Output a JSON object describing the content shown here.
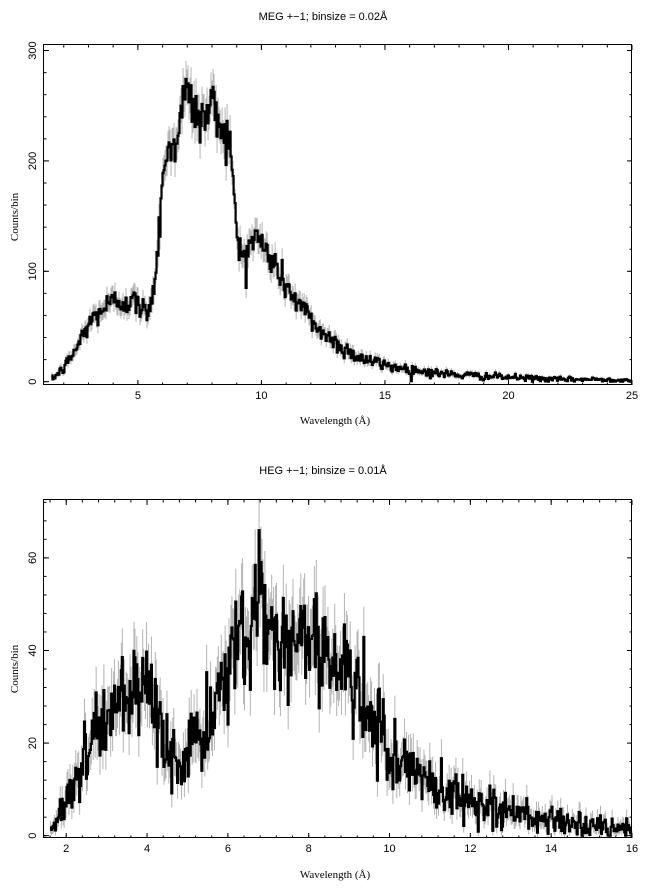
{
  "chart_data": [
    {
      "type": "line",
      "title": "MEG +−1; binsize = 0.02Å",
      "xlabel": "Wavelength (Å)",
      "ylabel": "Counts/bin",
      "xlim": [
        1.2,
        25
      ],
      "ylim": [
        -3,
        305
      ],
      "xticks": [
        5,
        10,
        15,
        20,
        25
      ],
      "yticks": [
        0,
        100,
        200,
        300
      ],
      "grid": false,
      "legend": "none",
      "series": [
        {
          "style": "histogram-step with error bars",
          "x": [
            1.5,
            2.0,
            2.5,
            3.0,
            3.5,
            4.0,
            4.5,
            5.0,
            5.3,
            5.5,
            5.7,
            5.9,
            6.0,
            6.2,
            6.5,
            6.8,
            7.0,
            7.3,
            7.6,
            7.9,
            8.1,
            8.4,
            8.7,
            8.9,
            9.1,
            9.4,
            9.7,
            10.0,
            10.4,
            10.8,
            11.2,
            11.6,
            12.0,
            12.5,
            13.0,
            13.5,
            14.0,
            14.5,
            15.0,
            16.0,
            17.0,
            18.0,
            19.0,
            20.0,
            21.0,
            22.0,
            23.0,
            24.0,
            25.0
          ],
          "y": [
            2,
            12,
            30,
            52,
            65,
            72,
            74,
            70,
            62,
            72,
            92,
            150,
            195,
            205,
            218,
            250,
            262,
            245,
            235,
            250,
            248,
            232,
            220,
            165,
            115,
            118,
            132,
            125,
            110,
            95,
            80,
            68,
            56,
            44,
            35,
            28,
            22,
            18,
            15,
            11,
            8,
            6,
            5,
            4,
            3,
            2,
            2,
            2,
            1
          ]
        }
      ]
    },
    {
      "type": "line",
      "title": "HEG +−1; binsize = 0.01Å",
      "xlabel": "Wavelength (Å)",
      "ylabel": "Counts/bin",
      "xlim": [
        1.45,
        16
      ],
      "ylim": [
        -0.5,
        72.5
      ],
      "xticks": [
        2,
        4,
        6,
        8,
        10,
        12,
        14,
        16
      ],
      "yticks": [
        0,
        20,
        40,
        60
      ],
      "grid": false,
      "legend": "none",
      "series": [
        {
          "style": "histogram-step with error bars",
          "x": [
            1.6,
            1.8,
            2.0,
            2.2,
            2.4,
            2.6,
            2.8,
            3.0,
            3.3,
            3.6,
            3.9,
            4.1,
            4.3,
            4.5,
            4.7,
            4.9,
            5.1,
            5.3,
            5.5,
            5.7,
            5.9,
            6.1,
            6.3,
            6.5,
            6.7,
            6.85,
            7.0,
            7.3,
            7.6,
            7.9,
            8.2,
            8.5,
            8.8,
            9.1,
            9.4,
            9.7,
            10.0,
            10.4,
            10.8,
            11.2,
            11.6,
            12.0,
            12.5,
            13.0,
            13.5,
            14.0,
            14.5,
            15.0,
            15.5,
            16.0
          ],
          "y": [
            1,
            4,
            8,
            12,
            16,
            20,
            24,
            26,
            28,
            29,
            28,
            28,
            25,
            20,
            15,
            17,
            20,
            20,
            22,
            27,
            33,
            38,
            43,
            46,
            49,
            56,
            45,
            40,
            41,
            44,
            43,
            40,
            36,
            31,
            27,
            23,
            19,
            15,
            12,
            10,
            9,
            8,
            6,
            5,
            4,
            3,
            2.5,
            2,
            1.5,
            1
          ]
        }
      ]
    }
  ]
}
